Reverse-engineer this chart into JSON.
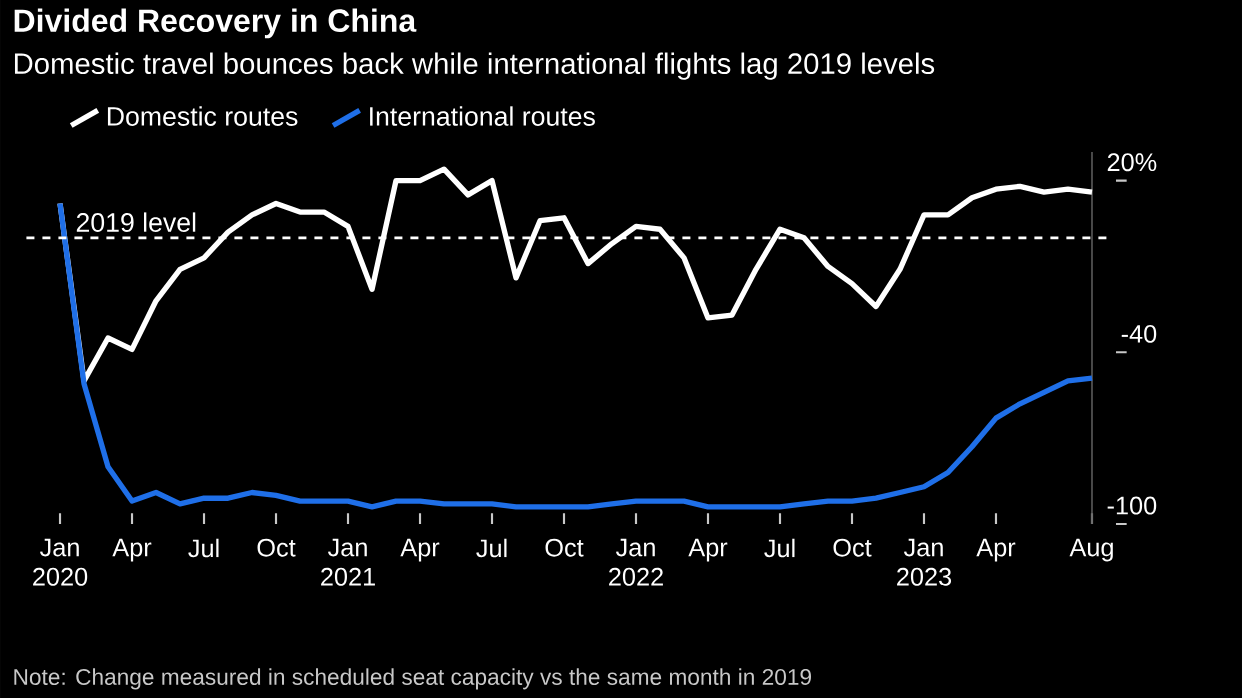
{
  "chart_data": {
    "type": "line",
    "title": "Divided Recovery in China",
    "subtitle": "Domestic travel bounces back while international flights lag 2019 levels",
    "x": [
      "2020-01",
      "2020-02",
      "2020-03",
      "2020-04",
      "2020-05",
      "2020-06",
      "2020-07",
      "2020-08",
      "2020-09",
      "2020-10",
      "2020-11",
      "2020-12",
      "2021-01",
      "2021-02",
      "2021-03",
      "2021-04",
      "2021-05",
      "2021-06",
      "2021-07",
      "2021-08",
      "2021-09",
      "2021-10",
      "2021-11",
      "2021-12",
      "2022-01",
      "2022-02",
      "2022-03",
      "2022-04",
      "2022-05",
      "2022-06",
      "2022-07",
      "2022-08",
      "2022-09",
      "2022-10",
      "2022-11",
      "2022-12",
      "2023-01",
      "2023-02",
      "2023-03",
      "2023-04",
      "2023-05",
      "2023-06",
      "2023-07",
      "2023-08"
    ],
    "series": [
      {
        "name": "Domestic routes",
        "color": "#ffffff",
        "values": [
          12,
          -50,
          -35,
          -39,
          -22,
          -11,
          -7,
          2,
          8,
          12,
          9,
          9,
          4,
          -18,
          20,
          20,
          24,
          15,
          20,
          -14,
          6,
          7,
          -9,
          -2,
          4,
          3,
          -7,
          -28,
          -27,
          -11,
          3,
          0,
          -10,
          -16,
          -24,
          -11,
          8,
          8,
          14,
          17,
          18,
          16,
          17,
          16
        ]
      },
      {
        "name": "International routes",
        "color": "#1f6fe8",
        "values": [
          12,
          -51,
          -80,
          -92,
          -89,
          -93,
          -91,
          -91,
          -89,
          -90,
          -92,
          -92,
          -92,
          -94,
          -92,
          -92,
          -93,
          -93,
          -93,
          -94,
          -94,
          -94,
          -94,
          -93,
          -92,
          -92,
          -92,
          -94,
          -94,
          -94,
          -94,
          -93,
          -92,
          -92,
          -91,
          -89,
          -87,
          -82,
          -73,
          -63,
          -58,
          -54,
          -50,
          -49
        ]
      }
    ],
    "xticks": [
      {
        "value": "2020-01",
        "label": "Jan 2020"
      },
      {
        "value": "2020-04",
        "label": "Apr"
      },
      {
        "value": "2020-07",
        "label": "Jul"
      },
      {
        "value": "2020-10",
        "label": "Oct"
      },
      {
        "value": "2021-01",
        "label": "Jan 2021"
      },
      {
        "value": "2021-04",
        "label": "Apr"
      },
      {
        "value": "2021-07",
        "label": "Jul"
      },
      {
        "value": "2021-10",
        "label": "Oct"
      },
      {
        "value": "2022-01",
        "label": "Jan 2022"
      },
      {
        "value": "2022-04",
        "label": "Apr"
      },
      {
        "value": "2022-07",
        "label": "Jul"
      },
      {
        "value": "2022-10",
        "label": "Oct"
      },
      {
        "value": "2023-01",
        "label": "Jan 2023"
      },
      {
        "value": "2023-04",
        "label": "Apr"
      },
      {
        "value": "2023-08",
        "label": "Aug"
      }
    ],
    "xlim": [
      "2020-01",
      "2023-08"
    ],
    "ylim": [
      -100,
      30
    ],
    "yticks": [
      {
        "value": 20,
        "label": "20%"
      },
      -40,
      -100
    ],
    "ref_lines": [
      {
        "axis": "y",
        "value": 0,
        "label": "2019 level",
        "color": "#ffffff",
        "line_style": "dashed"
      }
    ],
    "legend": "top left",
    "annotations": [
      "Note: Change measured in scheduled seat capacity vs the same month in 2019"
    ]
  }
}
